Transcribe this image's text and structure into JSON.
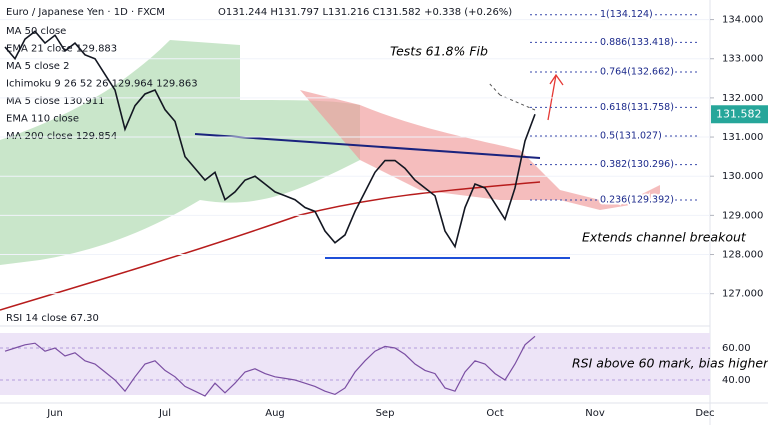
{
  "chart_data": {
    "type": "line",
    "title": "Euro / Japanese Yen · 1D · FXCM",
    "ohlc": "O131.244 H131.797 L131.216 C131.582 +0.338 (+0.26%)",
    "indicators": [
      "MA 50 close",
      "EMA 21 close 129.883",
      "MA 5 close 2",
      "Ichimoku 9 26 52 26 129.964 129.863",
      "MA 5 close 130.911",
      "EMA 110 close",
      "MA 200 close 129.854"
    ],
    "annotations": [
      "Tests 61.8% Fib",
      "Extends channel breakout",
      "RSI above 60 mark, bias higher"
    ],
    "categories": [
      null,
      null,
      null,
      null,
      null,
      "Jun",
      null,
      null,
      null,
      null,
      null,
      null,
      null,
      null,
      null,
      null,
      "Jul",
      null,
      null,
      null,
      null,
      null,
      null,
      null,
      null,
      null,
      null,
      "Aug",
      null,
      null,
      null,
      null,
      null,
      null,
      null,
      null,
      null,
      null,
      "Sep",
      null,
      null,
      null,
      null,
      null,
      null,
      null,
      null,
      null,
      null,
      "Oct",
      null,
      null,
      null,
      null,
      null,
      null,
      null,
      null,
      null,
      "Nov",
      null,
      null,
      null,
      null,
      null,
      null,
      null,
      null,
      null,
      null,
      "Dec"
    ],
    "series": [
      {
        "name": "Close",
        "color": "#131722",
        "values": [
          133.3,
          133.0,
          133.5,
          133.7,
          133.4,
          133.6,
          133.2,
          133.4,
          133.1,
          133.0,
          132.6,
          132.2,
          131.2,
          131.8,
          132.1,
          132.2,
          131.7,
          131.4,
          130.5,
          130.2,
          129.9,
          130.1,
          129.4,
          129.6,
          129.9,
          130.0,
          129.8,
          129.6,
          129.5,
          129.4,
          129.2,
          129.1,
          128.6,
          128.3,
          128.5,
          129.1,
          129.6,
          130.1,
          130.4,
          130.4,
          130.2,
          129.9,
          129.7,
          129.5,
          128.6,
          128.2,
          129.2,
          129.8,
          129.7,
          129.3,
          128.9,
          129.7,
          130.9,
          131.582,
          null,
          null,
          null,
          null,
          null,
          null,
          null,
          null,
          null,
          null,
          null,
          null,
          null,
          null,
          null,
          null,
          null
        ]
      }
    ],
    "ylim": [
      126.2,
      134.5
    ],
    "yticks": [
      {
        "value": 127,
        "label": "127.000"
      },
      {
        "value": 128,
        "label": "128.000"
      },
      {
        "value": 129,
        "label": "129.000"
      },
      {
        "value": 130,
        "label": "130.000"
      },
      {
        "value": 131,
        "label": "131.000"
      },
      {
        "value": 132,
        "label": "132.000"
      },
      {
        "value": 133,
        "label": "133.000"
      },
      {
        "value": 134,
        "label": "134.000"
      }
    ],
    "fib_levels": [
      {
        "value": 134.124,
        "label": "1(134.124)"
      },
      {
        "value": 133.418,
        "label": "0.886(133.418)"
      },
      {
        "value": 132.662,
        "label": "0.764(132.662)"
      },
      {
        "value": 131.758,
        "label": "0.618(131.758)"
      },
      {
        "value": 131.027,
        "label": "0.5(131.027)"
      },
      {
        "value": 130.296,
        "label": "0.382(130.296)"
      },
      {
        "value": 129.392,
        "label": "0.236(129.392)"
      }
    ],
    "rsi": {
      "label": "RSI 14 close 67.30",
      "color": "#7b4fa3",
      "values": [
        58,
        60,
        62,
        63,
        58,
        60,
        55,
        57,
        52,
        50,
        45,
        40,
        33,
        42,
        50,
        52,
        46,
        42,
        36,
        33,
        30,
        38,
        32,
        38,
        45,
        47,
        44,
        42,
        41,
        40,
        38,
        36,
        33,
        31,
        35,
        45,
        52,
        58,
        61,
        60,
        56,
        50,
        46,
        44,
        35,
        33,
        45,
        52,
        50,
        44,
        40,
        50,
        62,
        67.3,
        null,
        null,
        null,
        null,
        null,
        null,
        null,
        null,
        null,
        null,
        null,
        null,
        null,
        null,
        null,
        null,
        null
      ],
      "ylim": [
        27.5,
        71.25
      ],
      "yticks": [
        {
          "value": 40,
          "label": "40.00"
        },
        {
          "value": 60,
          "label": "60.00"
        }
      ]
    }
  }
}
